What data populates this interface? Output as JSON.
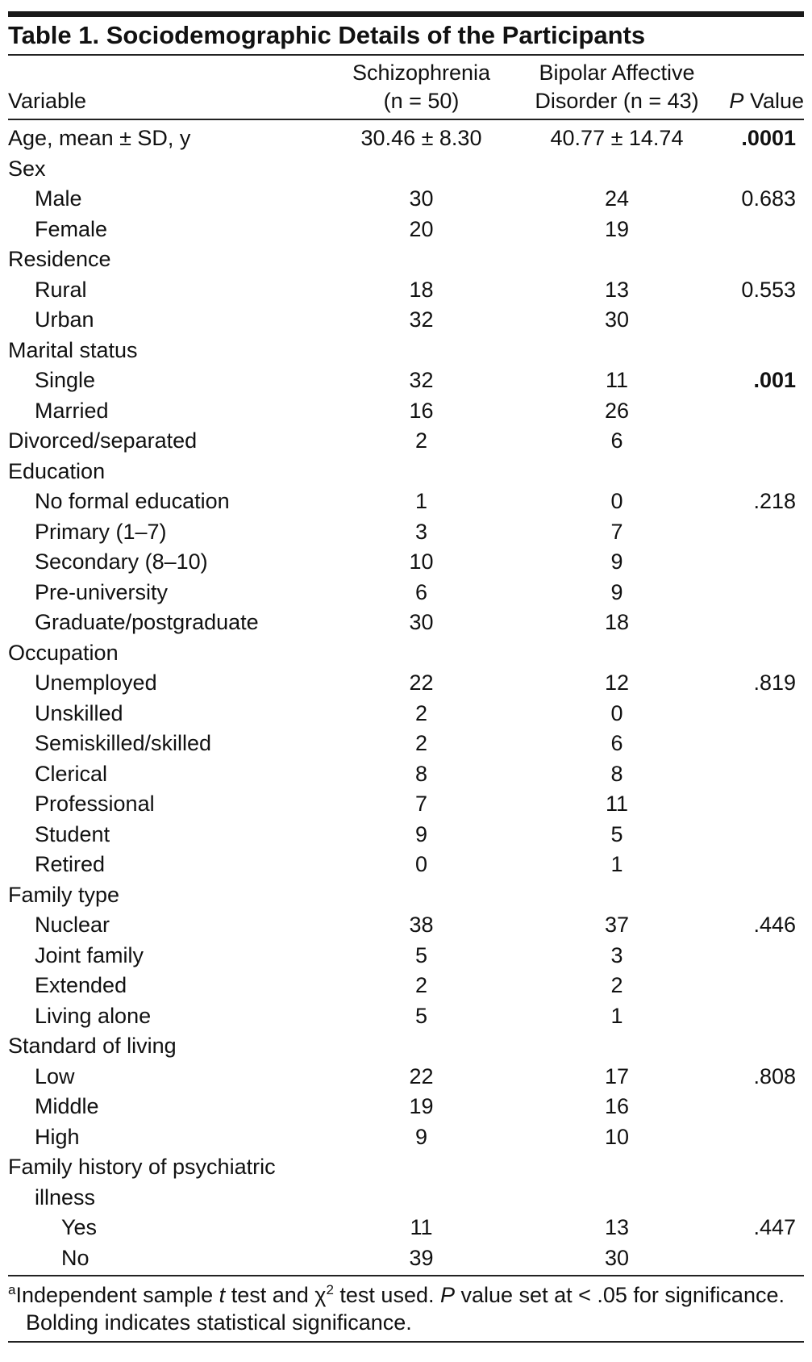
{
  "table": {
    "title": "Table 1. Sociodemographic Details of the Participants",
    "headers": {
      "variable": "Variable",
      "schizophrenia": [
        "Schizophrenia",
        "(n = 50)"
      ],
      "bipolar": [
        "Bipolar Affective",
        "Disorder (n = 43)"
      ],
      "p": [
        "P",
        " Value"
      ]
    },
    "rows": [
      {
        "label": "Age, mean ± SD, y",
        "schizophrenia": "30.46 ± 8.30",
        "bipolar": "40.77 ± 14.74",
        "p": ".0001",
        "bold": true,
        "indent": 0
      },
      {
        "label": "Sex",
        "indent": 0
      },
      {
        "label": "Male",
        "schizophrenia": "30",
        "bipolar": "24",
        "p": "0.683",
        "indent": 1
      },
      {
        "label": "Female",
        "schizophrenia": "20",
        "bipolar": "19",
        "indent": 1
      },
      {
        "label": "Residence",
        "indent": 0
      },
      {
        "label": "Rural",
        "schizophrenia": "18",
        "bipolar": "13",
        "p": "0.553",
        "indent": 1
      },
      {
        "label": "Urban",
        "schizophrenia": "32",
        "bipolar": "30",
        "indent": 1
      },
      {
        "label": "Marital status",
        "indent": 0
      },
      {
        "label": "Single",
        "schizophrenia": "32",
        "bipolar": "11",
        "p": ".001",
        "bold": true,
        "indent": 1
      },
      {
        "label": "Married",
        "schizophrenia": "16",
        "bipolar": "26",
        "indent": 1
      },
      {
        "label": "Divorced/separated",
        "schizophrenia": "2",
        "bipolar": "6",
        "indent": 0
      },
      {
        "label": "Education",
        "indent": 0
      },
      {
        "label": "No formal education",
        "schizophrenia": "1",
        "bipolar": "0",
        "p": ".218",
        "indent": 1
      },
      {
        "label": "Primary (1–7)",
        "schizophrenia": "3",
        "bipolar": "7",
        "indent": 1
      },
      {
        "label": "Secondary (8–10)",
        "schizophrenia": "10",
        "bipolar": "9",
        "indent": 1
      },
      {
        "label": "Pre-university",
        "schizophrenia": "6",
        "bipolar": "9",
        "indent": 1
      },
      {
        "label": "Graduate/postgraduate",
        "schizophrenia": "30",
        "bipolar": "18",
        "indent": 1
      },
      {
        "label": "Occupation",
        "indent": 0
      },
      {
        "label": "Unemployed",
        "schizophrenia": "22",
        "bipolar": "12",
        "p": ".819",
        "indent": 1
      },
      {
        "label": "Unskilled",
        "schizophrenia": "2",
        "bipolar": "0",
        "indent": 1
      },
      {
        "label": "Semiskilled/skilled",
        "schizophrenia": "2",
        "bipolar": "6",
        "indent": 1
      },
      {
        "label": "Clerical",
        "schizophrenia": "8",
        "bipolar": "8",
        "indent": 1
      },
      {
        "label": "Professional",
        "schizophrenia": "7",
        "bipolar": "11",
        "indent": 1
      },
      {
        "label": "Student",
        "schizophrenia": "9",
        "bipolar": "5",
        "indent": 1
      },
      {
        "label": "Retired",
        "schizophrenia": "0",
        "bipolar": "1",
        "indent": 1
      },
      {
        "label": "Family type",
        "indent": 0
      },
      {
        "label": "Nuclear",
        "schizophrenia": "38",
        "bipolar": "37",
        "p": ".446",
        "indent": 1
      },
      {
        "label": "Joint family",
        "schizophrenia": "5",
        "bipolar": "3",
        "indent": 1
      },
      {
        "label": "Extended",
        "schizophrenia": "2",
        "bipolar": "2",
        "indent": 1
      },
      {
        "label": "Living alone",
        "schizophrenia": "5",
        "bipolar": "1",
        "indent": 1
      },
      {
        "label": "Standard of living",
        "indent": 0
      },
      {
        "label": "Low",
        "schizophrenia": "22",
        "bipolar": "17",
        "p": ".808",
        "indent": 1
      },
      {
        "label": "Middle",
        "schizophrenia": "19",
        "bipolar": "16",
        "indent": 1
      },
      {
        "label": "High",
        "schizophrenia": "9",
        "bipolar": "10",
        "indent": 1
      },
      {
        "label": "Family history of psychiatric illness",
        "indent": 0
      },
      {
        "label": "Yes",
        "schizophrenia": "11",
        "bipolar": "13",
        "p": ".447",
        "indent": 2
      },
      {
        "label": "No",
        "schizophrenia": "39",
        "bipolar": "30",
        "indent": 2
      }
    ],
    "footnote": [
      "a",
      "Independent sample ",
      "t",
      " test and χ",
      "2",
      " test used. ",
      "P",
      " value set at < .05 for significance. Bolding indicates statistical significance."
    ]
  }
}
